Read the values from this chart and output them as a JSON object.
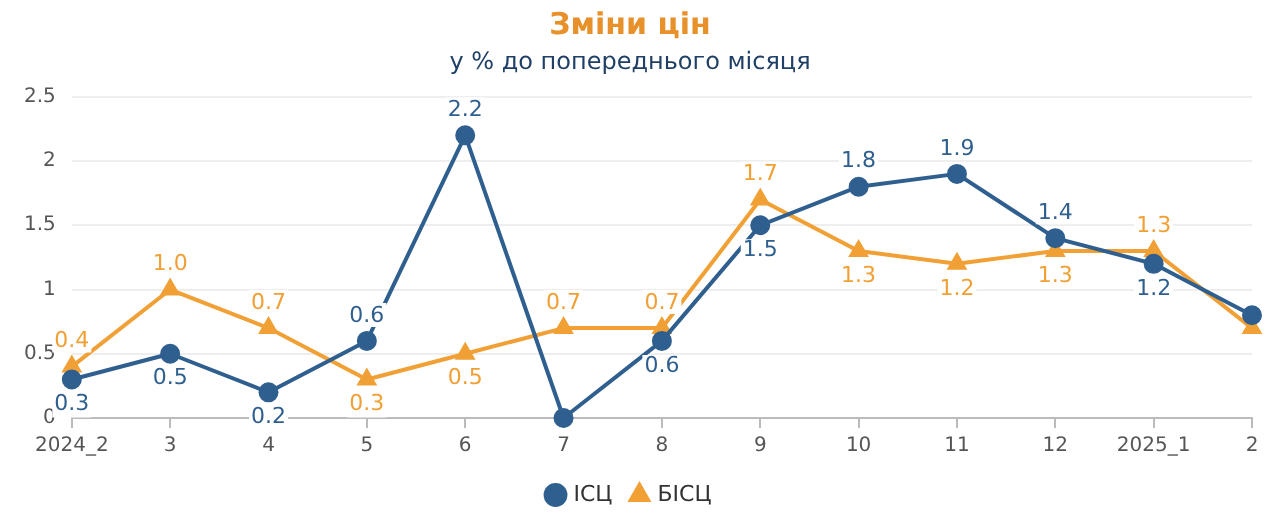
{
  "chart_data": {
    "type": "line",
    "title": "Зміни цін",
    "subtitle": "у % до попереднього місяця",
    "categories": [
      "2024_2",
      "3",
      "4",
      "5",
      "6",
      "7",
      "8",
      "9",
      "10",
      "11",
      "12",
      "2025_1",
      "2"
    ],
    "series": [
      {
        "name": "ІСЦ",
        "color": "#2f5f8f",
        "marker": "circle",
        "values": [
          0.3,
          0.5,
          0.2,
          0.6,
          2.2,
          0,
          0.6,
          1.5,
          1.8,
          1.9,
          1.4,
          1.2,
          0.8
        ],
        "value_labels": [
          "0.3",
          "0.5",
          "0.2",
          "0.6",
          "2.2",
          null,
          "0.6",
          "1.5",
          "1.8",
          "1.9",
          "1.4",
          "1.2",
          null
        ]
      },
      {
        "name": "БІСЦ",
        "color": "#f0a035",
        "marker": "triangle",
        "values": [
          0.4,
          1.0,
          0.7,
          0.3,
          0.5,
          0.7,
          0.7,
          1.7,
          1.3,
          1.2,
          1.3,
          1.3,
          0.7
        ],
        "value_labels": [
          "0.4",
          "1.0",
          "0.7",
          "0.3",
          "0.5",
          "0.7",
          "0.7",
          "1.7",
          "1.3",
          "1.2",
          "1.3",
          "1.3",
          null
        ]
      }
    ],
    "ylim": [
      0,
      2.5
    ],
    "yticks": [
      0,
      0.5,
      1,
      1.5,
      2,
      2.5
    ],
    "grid": "y",
    "legend": "bottom"
  }
}
